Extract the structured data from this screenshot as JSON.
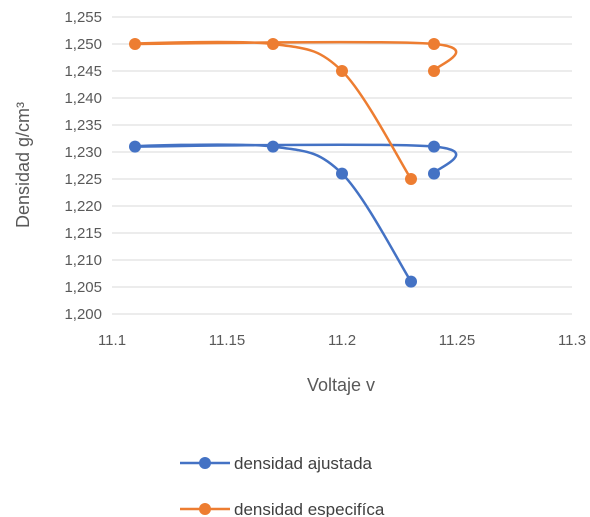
{
  "chart_data": {
    "type": "scatter",
    "title": "",
    "xlabel": "Voltaje v",
    "ylabel": "Densidad g/cm³",
    "xlim": [
      11.1,
      11.3
    ],
    "ylim": [
      1.2,
      1.255
    ],
    "x_ticks": [
      "11.1",
      "11.15",
      "11.2",
      "11.25",
      "11.3"
    ],
    "y_ticks": [
      "1,200",
      "1,205",
      "1,210",
      "1,215",
      "1,220",
      "1,225",
      "1,230",
      "1,235",
      "1,240",
      "1,245",
      "1,250",
      "1,255"
    ],
    "grid": "horizontal",
    "legend_position": "bottom",
    "series": [
      {
        "name": "densidad ajustada",
        "color": "#4472c4",
        "x": [
          11.23,
          11.2,
          11.17,
          11.11,
          11.24,
          11.24
        ],
        "y": [
          1.206,
          1.226,
          1.231,
          1.231,
          1.231,
          1.226
        ]
      },
      {
        "name": "densidad especifíca",
        "color": "#ed7d31",
        "x": [
          11.23,
          11.2,
          11.17,
          11.11,
          11.24,
          11.24
        ],
        "y": [
          1.225,
          1.245,
          1.25,
          1.25,
          1.25,
          1.245
        ]
      }
    ]
  }
}
